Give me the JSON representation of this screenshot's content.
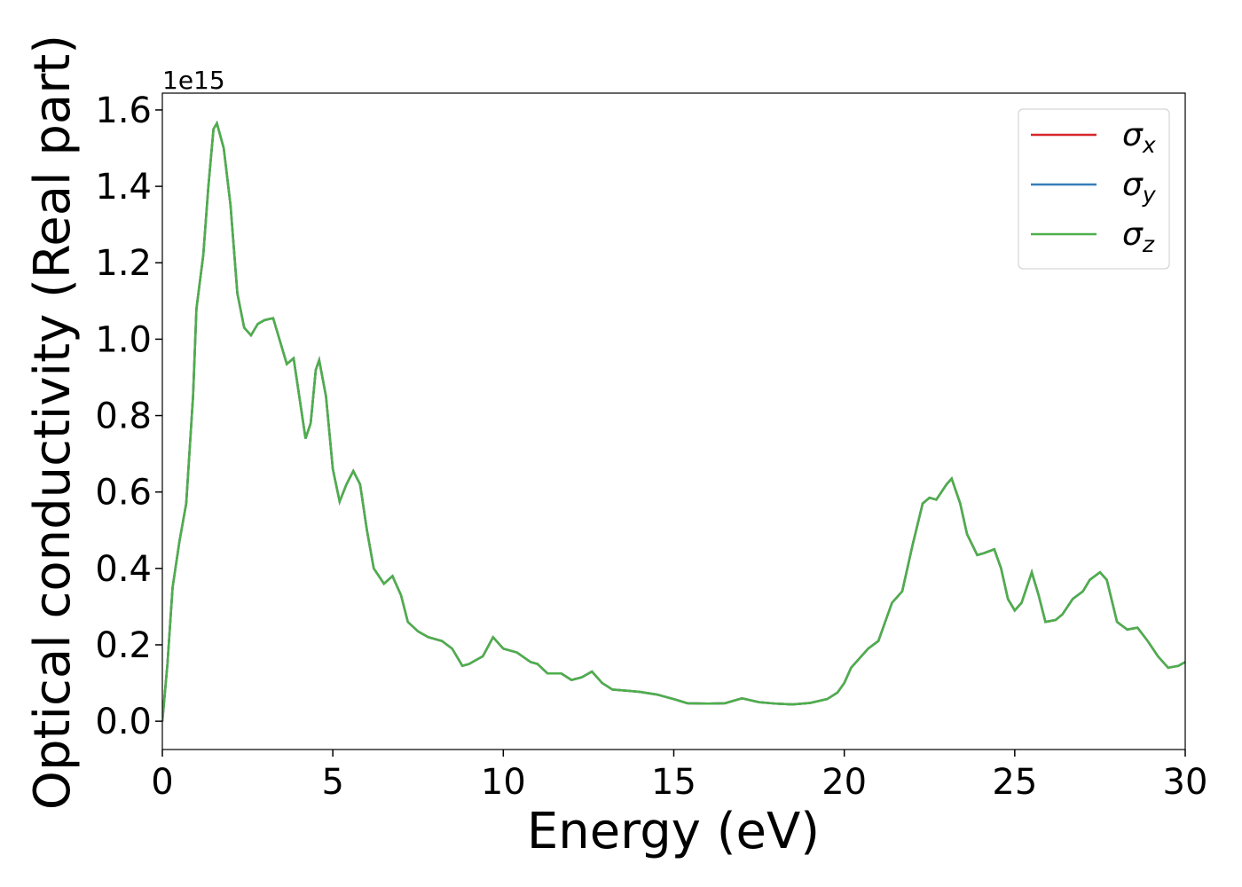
{
  "chart_data": {
    "type": "line",
    "xlabel": "Energy (eV)",
    "ylabel": "Optical conductivity (Real part)",
    "offset_label": "1e15",
    "xlim": [
      0,
      30
    ],
    "ylim": [
      -0.074,
      1.644
    ],
    "xticks": [
      0,
      5,
      10,
      15,
      20,
      25,
      30
    ],
    "yticks": [
      {
        "value": 0,
        "label": "0.0"
      },
      {
        "value": 0.2,
        "label": "0.2"
      },
      {
        "value": 0.4,
        "label": "0.4"
      },
      {
        "value": 0.6,
        "label": "0.6"
      },
      {
        "value": 0.8,
        "label": "0.8"
      },
      {
        "value": 1,
        "label": "1.0"
      },
      {
        "value": 1.2,
        "label": "1.2"
      },
      {
        "value": 1.4,
        "label": "1.4"
      },
      {
        "value": 1.6,
        "label": "1.6"
      }
    ],
    "legend": "upper right",
    "x": [
      0,
      0.15,
      0.3,
      0.5,
      0.7,
      0.9,
      1.0,
      1.2,
      1.35,
      1.5,
      1.6,
      1.8,
      2.0,
      2.2,
      2.4,
      2.6,
      2.8,
      3.0,
      3.25,
      3.5,
      3.65,
      3.85,
      4.0,
      4.2,
      4.35,
      4.5,
      4.6,
      4.8,
      5.0,
      5.2,
      5.4,
      5.6,
      5.8,
      6.0,
      6.2,
      6.5,
      6.75,
      7.0,
      7.2,
      7.5,
      7.8,
      8.2,
      8.5,
      8.8,
      9.0,
      9.4,
      9.7,
      10.0,
      10.4,
      10.8,
      11.0,
      11.3,
      11.7,
      12.0,
      12.3,
      12.6,
      12.9,
      13.2,
      13.6,
      14.0,
      14.5,
      15.0,
      15.4,
      16.0,
      16.5,
      17.0,
      17.5,
      18.0,
      18.5,
      19.0,
      19.5,
      19.8,
      20.0,
      20.2,
      20.5,
      20.7,
      21.0,
      21.2,
      21.4,
      21.7,
      22.0,
      22.3,
      22.5,
      22.7,
      23.0,
      23.15,
      23.4,
      23.6,
      23.9,
      24.1,
      24.4,
      24.6,
      24.8,
      25.0,
      25.2,
      25.5,
      25.7,
      25.9,
      26.2,
      26.4,
      26.7,
      27.0,
      27.2,
      27.5,
      27.7,
      28.0,
      28.3,
      28.6,
      28.9,
      29.2,
      29.5,
      29.8,
      30.0
    ],
    "series": [
      {
        "name": "σx",
        "color": "#d62728",
        "values": [
          0.0,
          0.15,
          0.35,
          0.47,
          0.57,
          0.85,
          1.08,
          1.22,
          1.4,
          1.55,
          1.565,
          1.5,
          1.35,
          1.12,
          1.03,
          1.01,
          1.04,
          1.05,
          1.055,
          0.98,
          0.935,
          0.95,
          0.86,
          0.74,
          0.78,
          0.92,
          0.945,
          0.85,
          0.66,
          0.575,
          0.62,
          0.655,
          0.62,
          0.5,
          0.4,
          0.36,
          0.38,
          0.33,
          0.26,
          0.235,
          0.22,
          0.21,
          0.19,
          0.145,
          0.15,
          0.17,
          0.22,
          0.19,
          0.18,
          0.155,
          0.15,
          0.125,
          0.125,
          0.108,
          0.115,
          0.13,
          0.1,
          0.083,
          0.08,
          0.077,
          0.07,
          0.058,
          0.047,
          0.046,
          0.047,
          0.06,
          0.05,
          0.046,
          0.044,
          0.048,
          0.058,
          0.075,
          0.1,
          0.14,
          0.17,
          0.19,
          0.21,
          0.26,
          0.31,
          0.34,
          0.46,
          0.57,
          0.585,
          0.58,
          0.62,
          0.635,
          0.57,
          0.49,
          0.435,
          0.44,
          0.45,
          0.4,
          0.32,
          0.29,
          0.31,
          0.39,
          0.33,
          0.26,
          0.265,
          0.28,
          0.32,
          0.34,
          0.37,
          0.39,
          0.37,
          0.26,
          0.24,
          0.245,
          0.21,
          0.17,
          0.14,
          0.145,
          0.155
        ]
      },
      {
        "name": "σy",
        "color": "#377eb8",
        "values": [
          0.0,
          0.15,
          0.35,
          0.47,
          0.57,
          0.85,
          1.08,
          1.22,
          1.4,
          1.55,
          1.565,
          1.5,
          1.35,
          1.12,
          1.03,
          1.01,
          1.04,
          1.05,
          1.055,
          0.98,
          0.935,
          0.95,
          0.86,
          0.74,
          0.78,
          0.92,
          0.945,
          0.85,
          0.66,
          0.575,
          0.62,
          0.655,
          0.62,
          0.5,
          0.4,
          0.36,
          0.38,
          0.33,
          0.26,
          0.235,
          0.22,
          0.21,
          0.19,
          0.145,
          0.15,
          0.17,
          0.22,
          0.19,
          0.18,
          0.155,
          0.15,
          0.125,
          0.125,
          0.108,
          0.115,
          0.13,
          0.1,
          0.083,
          0.08,
          0.077,
          0.07,
          0.058,
          0.047,
          0.046,
          0.047,
          0.06,
          0.05,
          0.046,
          0.044,
          0.048,
          0.058,
          0.075,
          0.1,
          0.14,
          0.17,
          0.19,
          0.21,
          0.26,
          0.31,
          0.34,
          0.46,
          0.57,
          0.585,
          0.58,
          0.62,
          0.635,
          0.57,
          0.49,
          0.435,
          0.44,
          0.45,
          0.4,
          0.32,
          0.29,
          0.31,
          0.39,
          0.33,
          0.26,
          0.265,
          0.28,
          0.32,
          0.34,
          0.37,
          0.39,
          0.37,
          0.26,
          0.24,
          0.245,
          0.21,
          0.17,
          0.14,
          0.145,
          0.155
        ]
      },
      {
        "name": "σz",
        "color": "#4daf4a",
        "values": [
          0.0,
          0.15,
          0.35,
          0.47,
          0.57,
          0.85,
          1.08,
          1.22,
          1.4,
          1.55,
          1.565,
          1.5,
          1.35,
          1.12,
          1.03,
          1.01,
          1.04,
          1.05,
          1.055,
          0.98,
          0.935,
          0.95,
          0.86,
          0.74,
          0.78,
          0.92,
          0.945,
          0.85,
          0.66,
          0.575,
          0.62,
          0.655,
          0.62,
          0.5,
          0.4,
          0.36,
          0.38,
          0.33,
          0.26,
          0.235,
          0.22,
          0.21,
          0.19,
          0.145,
          0.15,
          0.17,
          0.22,
          0.19,
          0.18,
          0.155,
          0.15,
          0.125,
          0.125,
          0.108,
          0.115,
          0.13,
          0.1,
          0.083,
          0.08,
          0.077,
          0.07,
          0.058,
          0.047,
          0.046,
          0.047,
          0.06,
          0.05,
          0.046,
          0.044,
          0.048,
          0.058,
          0.075,
          0.1,
          0.14,
          0.17,
          0.19,
          0.21,
          0.26,
          0.31,
          0.34,
          0.46,
          0.57,
          0.585,
          0.58,
          0.62,
          0.635,
          0.57,
          0.49,
          0.435,
          0.44,
          0.45,
          0.4,
          0.32,
          0.29,
          0.31,
          0.39,
          0.33,
          0.26,
          0.265,
          0.28,
          0.32,
          0.34,
          0.37,
          0.39,
          0.37,
          0.26,
          0.24,
          0.245,
          0.21,
          0.17,
          0.14,
          0.145,
          0.155
        ]
      }
    ]
  }
}
